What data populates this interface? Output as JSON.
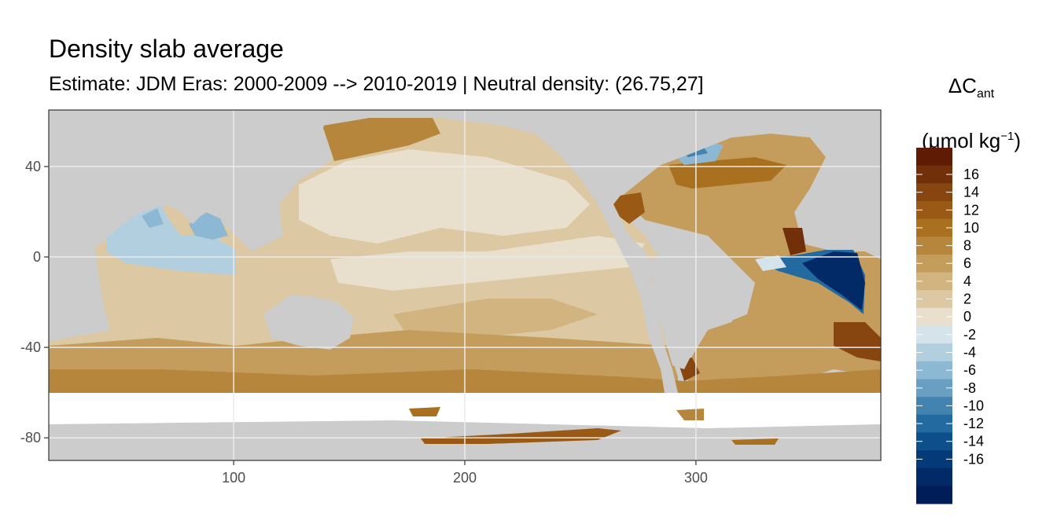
{
  "title": "Density slab average",
  "subtitle": "Estimate: JDM Eras: 2000-2009 --> 2010-2019 | Neutral density: (26.75,27]",
  "legend": {
    "title_main": "ΔC",
    "title_sub": "ant",
    "unit_prefix": "(μmol kg",
    "unit_sup": "−1",
    "unit_suffix": ")",
    "labels": [
      "16",
      "14",
      "12",
      "10",
      "8",
      "6",
      "4",
      "2",
      "0",
      "-2",
      "-4",
      "-6",
      "-8",
      "-10",
      "-12",
      "-14",
      "-16"
    ],
    "colors": [
      "#5f1b04",
      "#72300a",
      "#874510",
      "#9a5a16",
      "#a8701f",
      "#b5863c",
      "#c49d5c",
      "#d1b47f",
      "#dcc8a2",
      "#e8dfcc",
      "#d5e3ea",
      "#b2cfe0",
      "#8db8d3",
      "#689fc3",
      "#4383b0",
      "#236aa0",
      "#0c4f8a",
      "#053a78",
      "#022a66",
      "#011d57"
    ]
  },
  "axes": {
    "x": {
      "range": [
        20,
        380
      ],
      "ticks": [
        100,
        200,
        300
      ],
      "tick_labels": [
        "100",
        "200",
        "300"
      ]
    },
    "y": {
      "range": [
        -90,
        65
      ],
      "ticks": [
        40,
        0,
        -40,
        -80
      ],
      "tick_labels": [
        "40",
        "0",
        "-40",
        "-80"
      ]
    }
  },
  "map_colors": {
    "land": "#cccccc",
    "no_data": "#ffffff",
    "grid": "#ebebeb"
  }
}
